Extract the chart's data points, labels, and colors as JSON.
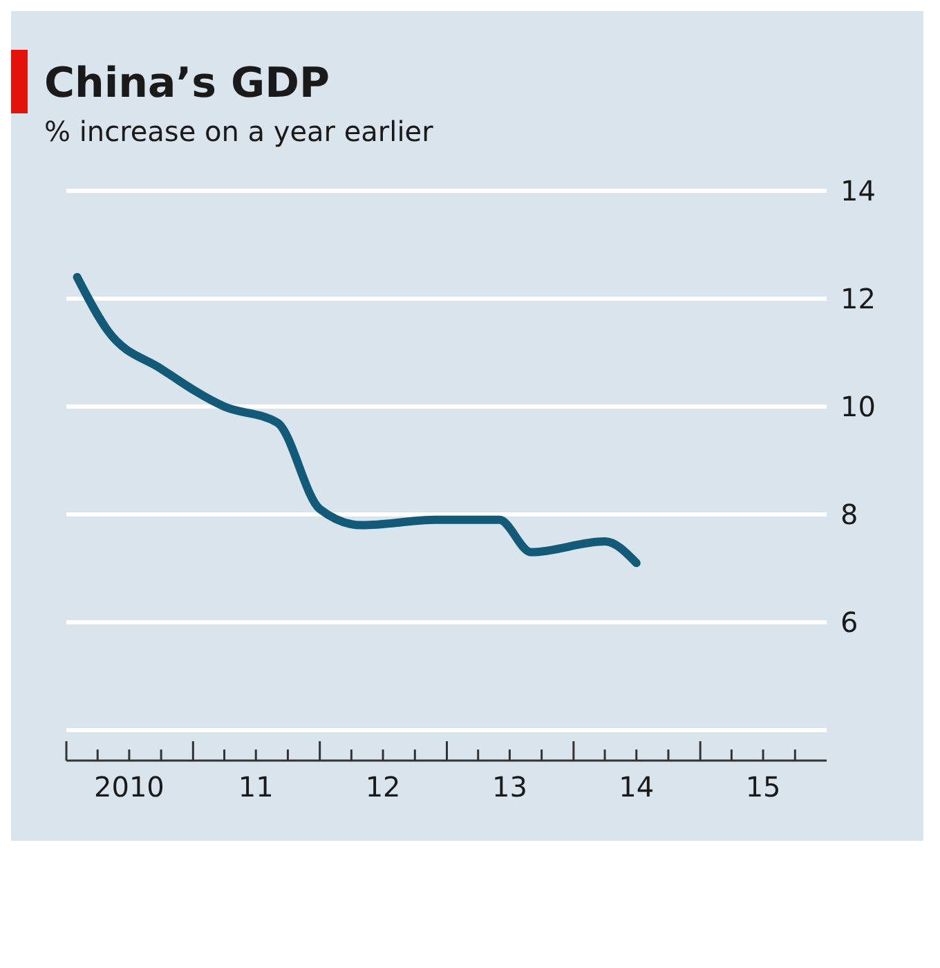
{
  "chart_data": {
    "type": "line",
    "title": "China’s GDP",
    "subtitle": "% increase on a year earlier",
    "x": [
      "2010-02",
      "2010-05",
      "2010-10",
      "2011-04",
      "2011-09",
      "2012-01",
      "2012-05",
      "2012-12",
      "2013-06",
      "2013-09",
      "2014-04",
      "2014-07"
    ],
    "series": [
      {
        "color": "#125a78",
        "values": [
          12.4,
          11.4,
          10.7,
          10.0,
          9.7,
          8.1,
          7.8,
          7.9,
          7.9,
          7.3,
          7.5,
          7.1
        ]
      }
    ],
    "xlim": [
      "2010-01-01",
      "2015-12-31"
    ],
    "xticks": [
      {
        "value": "2010-07-01",
        "label": "2010"
      },
      {
        "value": "2011-07-01",
        "label": "11"
      },
      {
        "value": "2012-07-01",
        "label": "12"
      },
      {
        "value": "2013-07-01",
        "label": "13"
      },
      {
        "value": "2014-07-01",
        "label": "14"
      },
      {
        "value": "2015-07-01",
        "label": "15"
      }
    ],
    "ylim": [
      4,
      14
    ],
    "yticks": [
      {
        "value": 4,
        "label": null
      },
      6,
      8,
      10,
      12,
      14
    ],
    "grid": "y",
    "marker": "none",
    "line_style": "solid"
  }
}
